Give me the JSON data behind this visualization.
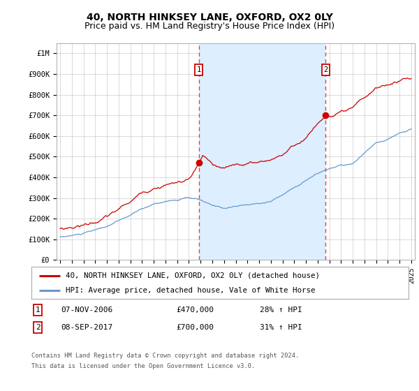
{
  "title": "40, NORTH HINKSEY LANE, OXFORD, OX2 0LY",
  "subtitle": "Price paid vs. HM Land Registry's House Price Index (HPI)",
  "ylabel_ticks": [
    "£0",
    "£100K",
    "£200K",
    "£300K",
    "£400K",
    "£500K",
    "£600K",
    "£700K",
    "£800K",
    "£900K",
    "£1M"
  ],
  "ytick_values": [
    0,
    100000,
    200000,
    300000,
    400000,
    500000,
    600000,
    700000,
    800000,
    900000,
    1000000
  ],
  "ylim": [
    0,
    1050000
  ],
  "xlim_start": 1994.7,
  "xlim_end": 2025.3,
  "sale1_date": 2006.85,
  "sale1_price": 470000,
  "sale2_date": 2017.69,
  "sale2_price": 700000,
  "sale1_label": "1",
  "sale2_label": "2",
  "sale1_annotation": "07-NOV-2006",
  "sale1_amount": "£470,000",
  "sale1_hpi": "28% ↑ HPI",
  "sale2_annotation": "08-SEP-2017",
  "sale2_amount": "£700,000",
  "sale2_hpi": "31% ↑ HPI",
  "legend_line1": "40, NORTH HINKSEY LANE, OXFORD, OX2 0LY (detached house)",
  "legend_line2": "HPI: Average price, detached house, Vale of White Horse",
  "footer1": "Contains HM Land Registry data © Crown copyright and database right 2024.",
  "footer2": "This data is licensed under the Open Government Licence v3.0.",
  "line_color_sale": "#cc0000",
  "line_color_hpi": "#6699cc",
  "vline_color": "#dd4444",
  "shade_color": "#ddeeff",
  "background_color": "#ffffff",
  "grid_color": "#cccccc",
  "title_fontsize": 10,
  "subtitle_fontsize": 9,
  "tick_fontsize": 7.5
}
